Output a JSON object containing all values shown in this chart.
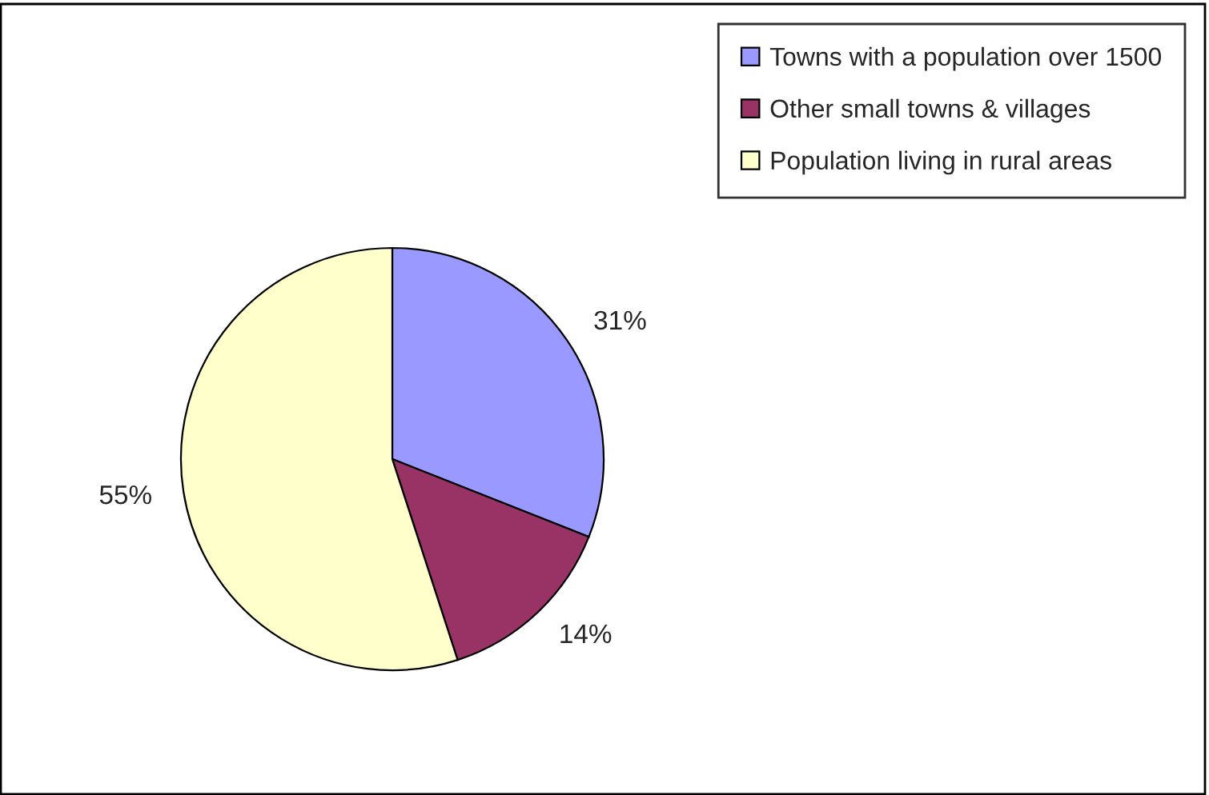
{
  "chart_data": {
    "type": "pie",
    "categories": [
      "Towns with a population over 1500",
      "Other small towns & villages",
      "Population living in rural areas"
    ],
    "values": [
      31,
      14,
      55
    ],
    "colors": [
      "#9999ff",
      "#993366",
      "#ffffcc"
    ],
    "value_labels": [
      "31%",
      "14%",
      "55%"
    ],
    "legend": "top right"
  }
}
